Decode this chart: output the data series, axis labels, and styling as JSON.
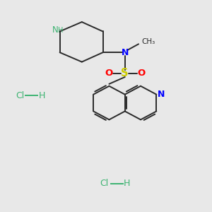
{
  "background_color": "#e8e8e8",
  "bond_color": "#2a2a2a",
  "N_color": "#0000ff",
  "NH_color": "#3cb371",
  "S_color": "#cccc00",
  "O_color": "#ff0000",
  "Cl_color": "#3cb371",
  "figsize": [
    3.0,
    3.0
  ],
  "dpi": 100,
  "xlim": [
    0,
    10
  ],
  "ylim": [
    0,
    10
  ]
}
